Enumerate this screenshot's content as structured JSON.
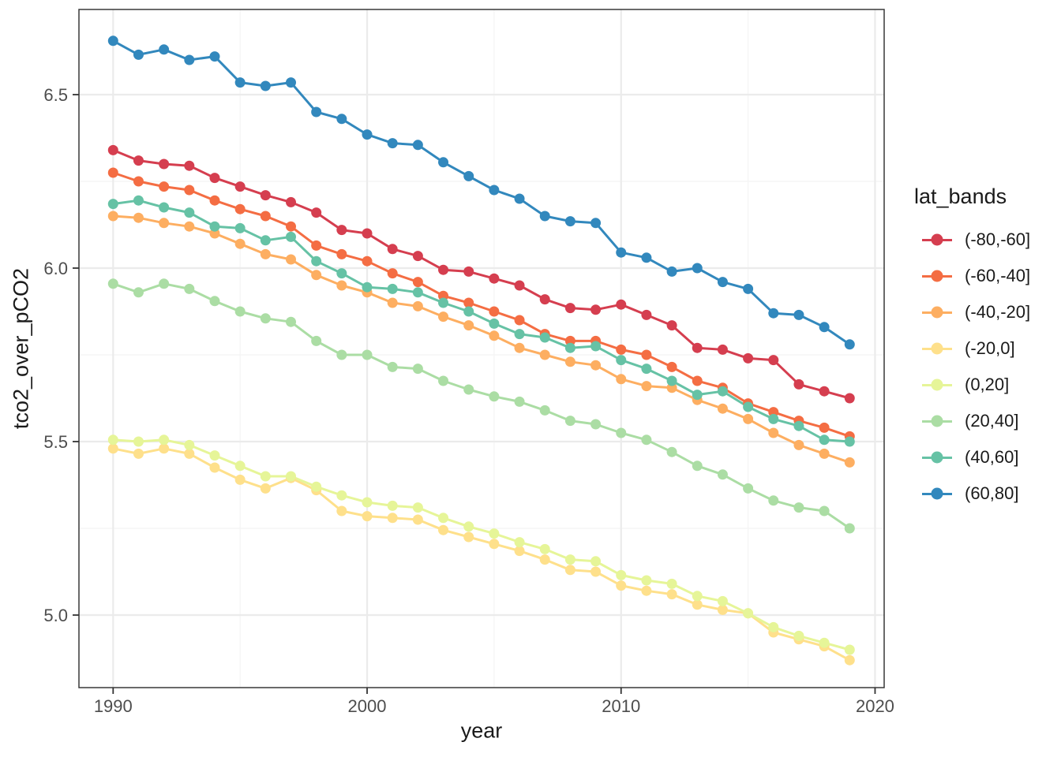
{
  "chart_data": {
    "type": "line",
    "title": "",
    "xlabel": "year",
    "ylabel": "tco2_over_pCO2",
    "legend_title": "lat_bands",
    "legend_position": "right",
    "grid": true,
    "xlim": [
      1988.6,
      2020.4
    ],
    "ylim": [
      4.79,
      6.75
    ],
    "x_ticks": {
      "major": [
        1990,
        2000,
        2010,
        2020
      ],
      "minor": [
        1995,
        2005,
        2015
      ],
      "labels": [
        "1990",
        "2000",
        "2010",
        "2020"
      ]
    },
    "y_ticks": {
      "major": [
        5.0,
        5.5,
        6.0,
        6.5
      ],
      "minor": [
        5.25,
        5.75,
        6.25
      ],
      "labels": [
        "5.0",
        "5.5",
        "6.0",
        "6.5"
      ]
    },
    "x": [
      1990,
      1991,
      1992,
      1993,
      1994,
      1995,
      1996,
      1997,
      1998,
      1999,
      2000,
      2001,
      2002,
      2003,
      2004,
      2005,
      2006,
      2007,
      2008,
      2009,
      2010,
      2011,
      2012,
      2013,
      2014,
      2015,
      2016,
      2017,
      2018,
      2019
    ],
    "series": [
      {
        "name": "(-80,-60]",
        "color": "#D53E4F",
        "values": [
          6.34,
          6.31,
          6.3,
          6.295,
          6.26,
          6.235,
          6.21,
          6.19,
          6.16,
          6.11,
          6.1,
          6.055,
          6.035,
          5.995,
          5.99,
          5.97,
          5.95,
          5.91,
          5.885,
          5.88,
          5.895,
          5.865,
          5.835,
          5.77,
          5.765,
          5.74,
          5.735,
          5.665,
          5.645,
          5.625
        ]
      },
      {
        "name": "(-60,-40]",
        "color": "#F46D43",
        "values": [
          6.275,
          6.25,
          6.235,
          6.225,
          6.195,
          6.17,
          6.15,
          6.12,
          6.065,
          6.04,
          6.02,
          5.985,
          5.96,
          5.92,
          5.9,
          5.875,
          5.85,
          5.81,
          5.79,
          5.79,
          5.765,
          5.75,
          5.715,
          5.675,
          5.655,
          5.61,
          5.585,
          5.56,
          5.54,
          5.515
        ]
      },
      {
        "name": "(-40,-20]",
        "color": "#FDAE61",
        "values": [
          6.15,
          6.145,
          6.13,
          6.12,
          6.1,
          6.07,
          6.04,
          6.025,
          5.98,
          5.95,
          5.93,
          5.9,
          5.89,
          5.86,
          5.835,
          5.805,
          5.77,
          5.75,
          5.73,
          5.72,
          5.68,
          5.66,
          5.655,
          5.62,
          5.595,
          5.565,
          5.525,
          5.49,
          5.465,
          5.44
        ]
      },
      {
        "name": "(-20,0]",
        "color": "#FEE08B",
        "values": [
          5.48,
          5.465,
          5.48,
          5.465,
          5.425,
          5.39,
          5.365,
          5.395,
          5.36,
          5.3,
          5.285,
          5.28,
          5.275,
          5.245,
          5.225,
          5.205,
          5.185,
          5.16,
          5.13,
          5.125,
          5.085,
          5.07,
          5.06,
          5.03,
          5.015,
          5.005,
          4.95,
          4.93,
          4.91,
          4.87
        ]
      },
      {
        "name": "(0,20]",
        "color": "#E6F598",
        "values": [
          5.505,
          5.5,
          5.505,
          5.49,
          5.46,
          5.43,
          5.4,
          5.4,
          5.37,
          5.345,
          5.325,
          5.315,
          5.31,
          5.28,
          5.255,
          5.235,
          5.21,
          5.19,
          5.16,
          5.155,
          5.115,
          5.1,
          5.09,
          5.055,
          5.04,
          5.005,
          4.965,
          4.94,
          4.92,
          4.9
        ]
      },
      {
        "name": "(20,40]",
        "color": "#ABDDA4",
        "values": [
          5.955,
          5.93,
          5.955,
          5.94,
          5.905,
          5.875,
          5.855,
          5.845,
          5.79,
          5.75,
          5.75,
          5.715,
          5.71,
          5.675,
          5.65,
          5.63,
          5.615,
          5.59,
          5.56,
          5.55,
          5.525,
          5.505,
          5.47,
          5.43,
          5.405,
          5.365,
          5.33,
          5.31,
          5.3,
          5.25
        ]
      },
      {
        "name": "(40,60]",
        "color": "#66C2A5",
        "values": [
          6.185,
          6.195,
          6.175,
          6.16,
          6.12,
          6.115,
          6.08,
          6.09,
          6.02,
          5.985,
          5.945,
          5.94,
          5.93,
          5.9,
          5.875,
          5.84,
          5.81,
          5.8,
          5.77,
          5.775,
          5.735,
          5.71,
          5.675,
          5.635,
          5.645,
          5.6,
          5.565,
          5.545,
          5.505,
          5.5
        ]
      },
      {
        "name": "(60,80]",
        "color": "#3288BD",
        "values": [
          6.655,
          6.615,
          6.63,
          6.6,
          6.61,
          6.535,
          6.525,
          6.535,
          6.45,
          6.43,
          6.385,
          6.36,
          6.355,
          6.305,
          6.265,
          6.225,
          6.2,
          6.15,
          6.135,
          6.13,
          6.045,
          6.03,
          5.99,
          6.0,
          5.96,
          5.94,
          5.87,
          5.865,
          5.83,
          5.78
        ]
      }
    ],
    "style_colors": {
      "major_grid": "#EBEBEB",
      "minor_grid": "#F4F4F4",
      "panel_border": "#383838",
      "tick_mark": "#333333",
      "tick_label": "#4D4D4D",
      "axis_title": "#1A1A1A"
    }
  }
}
